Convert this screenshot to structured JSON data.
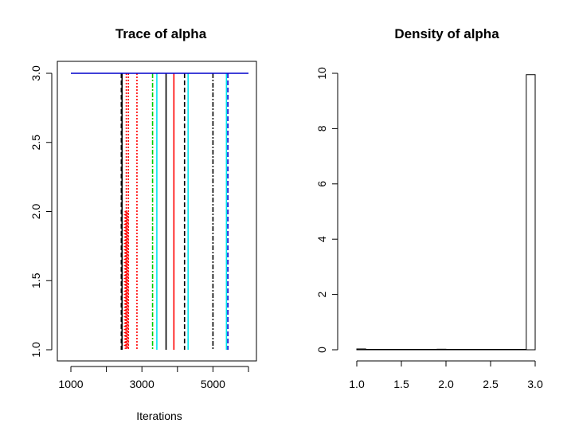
{
  "chart_data": [
    {
      "type": "line",
      "title": "Trace of alpha",
      "xlabel": "Iterations",
      "ylabel": "",
      "xlim": [
        1000,
        6000
      ],
      "ylim": [
        1.0,
        3.0
      ],
      "xticks": [
        1000,
        2000,
        3000,
        4000,
        5000,
        6000
      ],
      "xtick_labels": [
        "1000",
        "",
        "3000",
        "",
        "5000",
        ""
      ],
      "yticks": [
        1.0,
        1.5,
        2.0,
        2.5,
        3.0
      ],
      "ytick_labels": [
        "1.0",
        "1.5",
        "2.0",
        "2.5",
        "3.0"
      ],
      "baseline": {
        "x": [
          1000,
          6000
        ],
        "y": [
          3.0,
          3.0
        ],
        "color": "#0000cc"
      },
      "series": [
        {
          "x": 2420,
          "low": 1.0,
          "high": 3.0,
          "color": "#000000",
          "dash": "6,3"
        },
        {
          "x": 2440,
          "low": 1.0,
          "high": 3.0,
          "color": "#000000",
          "dash": "none"
        },
        {
          "x": 2560,
          "low": 1.0,
          "high": 3.0,
          "color": "#ff0000",
          "dash": "2,2"
        },
        {
          "x": 2620,
          "low": 1.0,
          "high": 3.0,
          "color": "#ff0000",
          "dash": "2,2"
        },
        {
          "x": 2860,
          "low": 1.0,
          "high": 3.0,
          "color": "#ff0000",
          "dash": "2,2"
        },
        {
          "x": 3300,
          "low": 1.0,
          "high": 3.0,
          "color": "#00cc00",
          "dash": "6,2,2,2"
        },
        {
          "x": 3420,
          "low": 1.0,
          "high": 3.0,
          "color": "#00e5ee",
          "dash": "none"
        },
        {
          "x": 3680,
          "low": 1.0,
          "high": 3.0,
          "color": "#000000",
          "dash": "none"
        },
        {
          "x": 3900,
          "low": 1.0,
          "high": 3.0,
          "color": "#ff0000",
          "dash": "none"
        },
        {
          "x": 4200,
          "low": 1.0,
          "high": 3.0,
          "color": "#000000",
          "dash": "6,3"
        },
        {
          "x": 4300,
          "low": 1.0,
          "high": 3.0,
          "color": "#00e5ee",
          "dash": "none"
        },
        {
          "x": 5000,
          "low": 1.0,
          "high": 3.0,
          "color": "#000000",
          "dash": "6,2,2,2"
        },
        {
          "x": 5380,
          "low": 1.0,
          "high": 3.0,
          "color": "#00e5ee",
          "dash": "none"
        },
        {
          "x": 5420,
          "low": 1.0,
          "high": 3.0,
          "color": "#0000cc",
          "dash": "6,3"
        }
      ],
      "dense_segment": {
        "x": 2560,
        "low": 1.0,
        "high": 2.0,
        "color": "#ff0000"
      }
    },
    {
      "type": "bar",
      "title": "Density of alpha",
      "xlabel": "",
      "ylabel": "",
      "xlim": [
        1.0,
        3.0
      ],
      "ylim": [
        0,
        10
      ],
      "xticks": [
        1.0,
        1.5,
        2.0,
        2.5,
        3.0
      ],
      "xtick_labels": [
        "1.0",
        "1.5",
        "2.0",
        "2.5",
        "3.0"
      ],
      "yticks": [
        0,
        2,
        4,
        6,
        8,
        10
      ],
      "ytick_labels": [
        "0",
        "2",
        "4",
        "6",
        "8",
        "10"
      ],
      "bins": [
        {
          "x0": 1.0,
          "x1": 1.1,
          "value": 0.03
        },
        {
          "x0": 1.1,
          "x1": 1.9,
          "value": 0.0
        },
        {
          "x0": 1.9,
          "x1": 2.0,
          "value": 0.02
        },
        {
          "x0": 2.0,
          "x1": 2.9,
          "value": 0.0
        },
        {
          "x0": 2.9,
          "x1": 3.0,
          "value": 9.95
        }
      ]
    }
  ]
}
